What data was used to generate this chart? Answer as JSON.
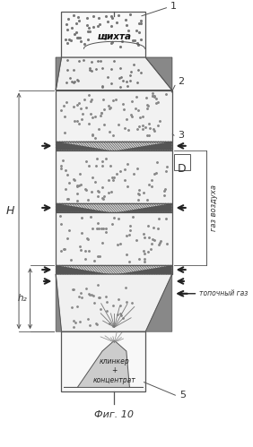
{
  "title": "Фиг. 10",
  "background_color": "#ffffff",
  "line_color": "#555555",
  "text_color": "#333333",
  "fig_width": 2.82,
  "fig_height": 4.99,
  "dpi": 100,
  "label_1": "1",
  "label_2": "2",
  "label_3": "3",
  "label_D": "D",
  "label_5": "5",
  "label_H": "H",
  "label_h": "h₂",
  "label_shihta": "шихта",
  "label_klinker": "клинкер\n+\nконцентрат",
  "label_gaz_vozduh": "газ воздуха",
  "label_topochny_gaz": "топочный газ"
}
